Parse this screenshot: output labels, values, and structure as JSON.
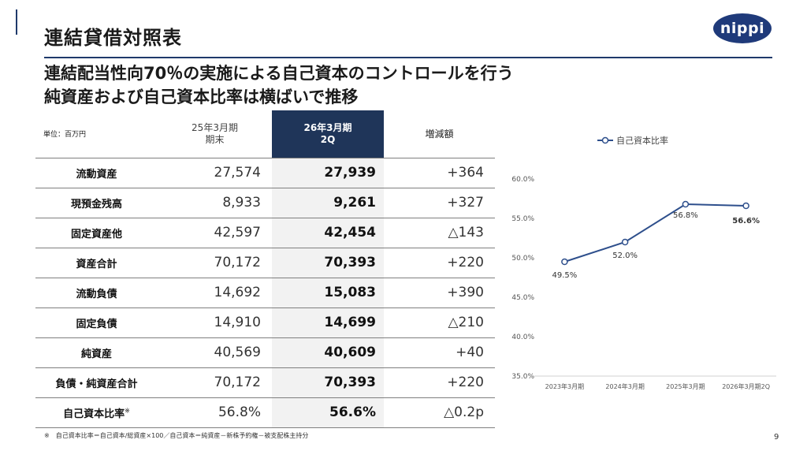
{
  "header": {
    "title": "連結貸借対照表",
    "logo_text": "nippi"
  },
  "subtitle": {
    "line1": "連結配当性向70％の実施による自己資本のコントロールを行う",
    "line2": "純資産および自己資本比率は横ばいで推移"
  },
  "table": {
    "unit_label": "単位：百万円",
    "col_prev_line1": "25年3月期",
    "col_prev_line2": "期末",
    "col_cur_line1": "26年3月期",
    "col_cur_line2": "2Q",
    "col_diff": "増減額",
    "rows": [
      {
        "label": "流動資産",
        "prev": "27,574",
        "cur": "27,939",
        "diff": "+364"
      },
      {
        "label": "現預金残高",
        "prev": "8,933",
        "cur": "9,261",
        "diff": "+327"
      },
      {
        "label": "固定資産他",
        "prev": "42,597",
        "cur": "42,454",
        "diff": "△143"
      },
      {
        "label": "資産合計",
        "prev": "70,172",
        "cur": "70,393",
        "diff": "+220"
      },
      {
        "label": "流動負債",
        "prev": "14,692",
        "cur": "15,083",
        "diff": "+390"
      },
      {
        "label": "固定負債",
        "prev": "14,910",
        "cur": "14,699",
        "diff": "△210"
      },
      {
        "label": "純資産",
        "prev": "40,569",
        "cur": "40,609",
        "diff": "+40"
      },
      {
        "label": "負債・純資産合計",
        "prev": "70,172",
        "cur": "70,393",
        "diff": "+220"
      },
      {
        "label": "自己資本比率",
        "label_mark": "※",
        "prev": "56.8%",
        "cur": "56.6%",
        "diff": "△0.2p"
      }
    ]
  },
  "footnote": "※　自己資本比率＝自己資本/総資産×100／自己資本＝純資産－新株予約権－被支配株主持分",
  "page_number": "9",
  "chart_data": {
    "type": "line",
    "categories": [
      "2023年3月期",
      "2024年3月期",
      "2025年3月期",
      "2026年3月期2Q"
    ],
    "series": [
      {
        "name": "自己資本比率",
        "values": [
          49.5,
          52.0,
          56.8,
          56.6
        ],
        "labels": [
          "49.5%",
          "52.0%",
          "56.8%",
          "56.6%"
        ]
      }
    ],
    "y_ticks": [
      "60.0%",
      "55.0%",
      "50.0%",
      "45.0%",
      "40.0%",
      "35.0%"
    ],
    "ylim": [
      35,
      60
    ],
    "legend_position": "top",
    "grid": false,
    "line_color": "#2e4f8c"
  }
}
